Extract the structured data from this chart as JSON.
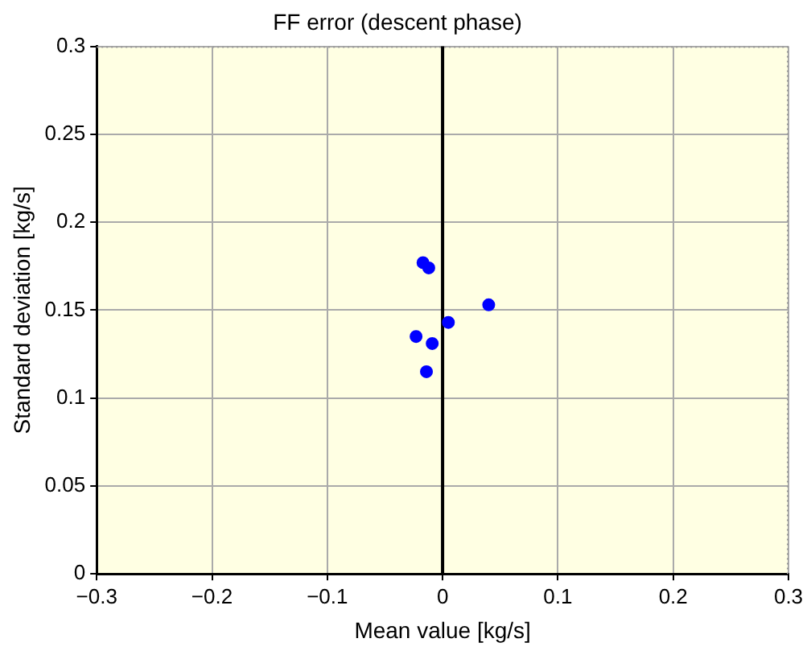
{
  "chart_data": {
    "type": "scatter",
    "title": "FF error (descent phase)",
    "xlabel": "Mean value [kg/s]",
    "ylabel": "Standard deviation [kg/s]",
    "x": [
      -0.017,
      -0.012,
      0.04,
      0.005,
      -0.023,
      -0.009,
      -0.014
    ],
    "series": [
      {
        "color": "#0000ff",
        "values": [
          0.177,
          0.174,
          0.153,
          0.143,
          0.135,
          0.131,
          0.115
        ]
      }
    ],
    "xlim": [
      -0.3,
      0.3
    ],
    "xticks": [
      -0.3,
      -0.2,
      -0.1,
      0,
      0.1,
      0.2,
      0.3
    ],
    "ylim": [
      0,
      0.3
    ],
    "yticks": [
      0,
      0.05,
      0.1,
      0.15,
      0.2,
      0.25,
      0.3
    ],
    "grid": true,
    "legend": false,
    "marker": "circle",
    "ref_lines": [
      {
        "axis": "x",
        "value": 0,
        "color": "#000000",
        "line_style": "solid"
      }
    ]
  }
}
